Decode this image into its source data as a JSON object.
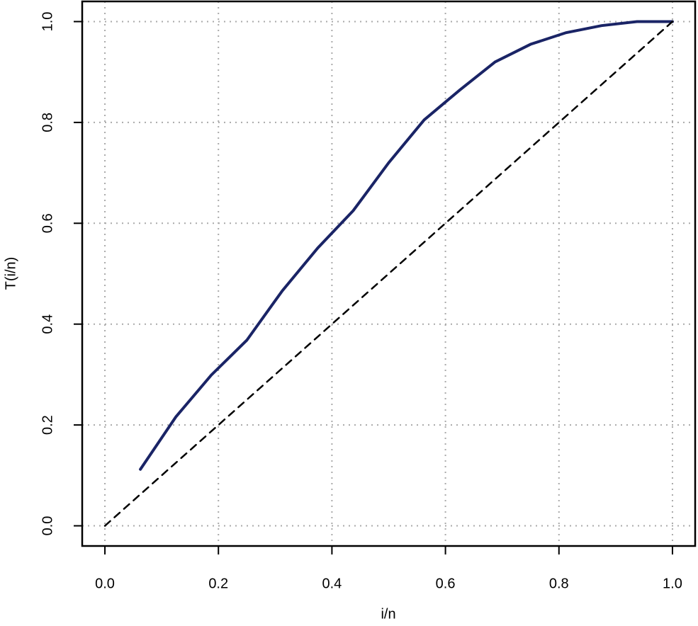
{
  "chart_data": {
    "type": "line",
    "xlabel": "i/n",
    "ylabel": "T(i/n)",
    "series": [
      {
        "color": "#1a2466",
        "style": "solid",
        "x": [
          0.0625,
          0.125,
          0.1875,
          0.25,
          0.3125,
          0.375,
          0.4375,
          0.5,
          0.5625,
          0.625,
          0.6875,
          0.75,
          0.8125,
          0.875,
          0.9375,
          1.0
        ],
        "values": [
          0.112,
          0.216,
          0.299,
          0.368,
          0.466,
          0.551,
          0.625,
          0.72,
          0.805,
          0.864,
          0.92,
          0.955,
          0.978,
          0.992,
          1.0,
          1.0
        ]
      },
      {
        "color": "#000000",
        "style": "dashed",
        "x": [
          0,
          1
        ],
        "values": [
          0,
          1
        ]
      }
    ],
    "xlim": [
      -0.04,
      1.04
    ],
    "ylim": [
      -0.04,
      1.04
    ],
    "xticks": [
      {
        "value": 0,
        "label": "0.0"
      },
      0.2,
      0.4,
      0.6,
      0.8,
      {
        "value": 1,
        "label": "1.0"
      }
    ],
    "yticks": [
      {
        "value": 0,
        "label": "0.0"
      },
      0.2,
      0.4,
      0.6,
      0.8,
      {
        "value": 1,
        "label": "1.0"
      }
    ],
    "grid": true
  }
}
